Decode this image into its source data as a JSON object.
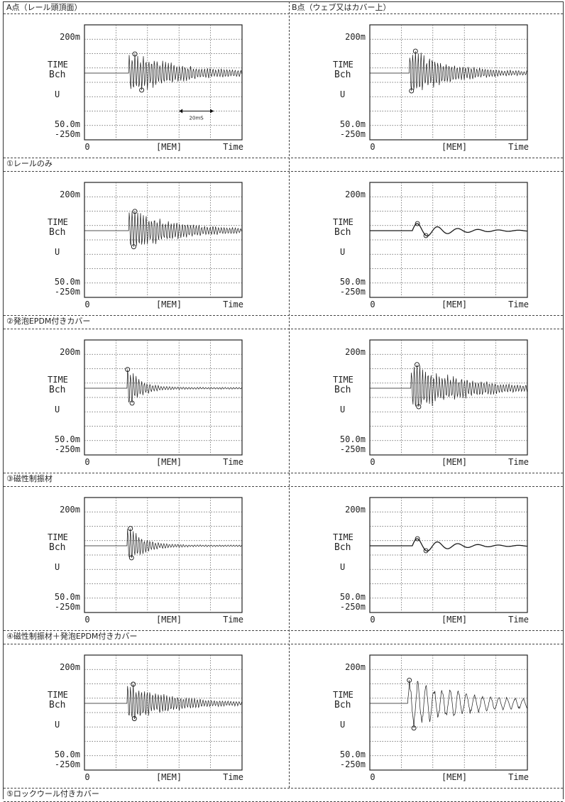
{
  "columns": [
    "A点（レール頭頂面）",
    "B点（ウェブ又はカバー上）"
  ],
  "rows": [
    {
      "caption": "①レールのみ"
    },
    {
      "caption": "②発泡EPDM付きカバー"
    },
    {
      "caption": "③磁性制振材"
    },
    {
      "caption": "④磁性制振材＋発泡EPDM付きカバー"
    },
    {
      "caption": "⑤ロックウール付きカバー"
    }
  ],
  "scope": {
    "y_top_label": "200m",
    "mode_label": "TIME",
    "channel_label": "Bch",
    "unit_label": "U",
    "scale_label": "50.0m",
    "y_bottom_label": "-250m",
    "x_start_label": "0",
    "mem_label": "[MEM]",
    "x_end_label": "Time",
    "scale_bar_label": "20mS"
  },
  "colors": {
    "trace": "#1a1a1a",
    "grid": "#555555",
    "frame": "#222222"
  },
  "chart_data": [
    {
      "type": "line",
      "row": 1,
      "column": "A点（レール頭頂面）",
      "ylim": [
        -250,
        200
      ],
      "amplitude": 0.85,
      "decay": 2.2,
      "frequency": "high",
      "onset": 0.28
    },
    {
      "type": "line",
      "row": 1,
      "column": "B点（ウェブ又はカバー上）",
      "ylim": [
        -250,
        200
      ],
      "amplitude": 1.0,
      "decay": 3.0,
      "frequency": "high",
      "onset": 0.25
    },
    {
      "type": "line",
      "row": 2,
      "column": "A点（レール頭頂面）",
      "ylim": [
        -250,
        200
      ],
      "amplitude": 0.85,
      "decay": 2.4,
      "frequency": "high",
      "onset": 0.28
    },
    {
      "type": "line",
      "row": 2,
      "column": "B点（ウェブ又はカバー上）",
      "ylim": [
        -250,
        200
      ],
      "amplitude": 0.3,
      "decay": 3.5,
      "frequency": "low",
      "onset": 0.27
    },
    {
      "type": "line",
      "row": 3,
      "column": "A点（レール頭頂面）",
      "ylim": [
        -250,
        200
      ],
      "amplitude": 0.9,
      "decay": 9.0,
      "frequency": "high",
      "onset": 0.27
    },
    {
      "type": "line",
      "row": 3,
      "column": "B点（ウェブ又はカバー上）",
      "ylim": [
        -250,
        200
      ],
      "amplitude": 1.0,
      "decay": 2.3,
      "frequency": "high",
      "onset": 0.26
    },
    {
      "type": "line",
      "row": 4,
      "column": "A点（レール頭頂面）",
      "ylim": [
        -250,
        200
      ],
      "amplitude": 0.8,
      "decay": 7.5,
      "frequency": "high",
      "onset": 0.27
    },
    {
      "type": "line",
      "row": 4,
      "column": "B点（ウェブ又はカバー上）",
      "ylim": [
        -250,
        200
      ],
      "amplitude": 0.3,
      "decay": 3.5,
      "frequency": "low",
      "onset": 0.27
    },
    {
      "type": "line",
      "row": 5,
      "column": "A点（レール頭頂面）",
      "ylim": [
        -250,
        200
      ],
      "amplitude": 0.8,
      "decay": 2.6,
      "frequency": "high",
      "onset": 0.27
    },
    {
      "type": "line",
      "row": 5,
      "column": "B点（ウェブ又はカバー上）",
      "ylim": [
        -250,
        200
      ],
      "amplitude": 1.0,
      "decay": 1.8,
      "frequency": "medium",
      "onset": 0.24
    }
  ]
}
